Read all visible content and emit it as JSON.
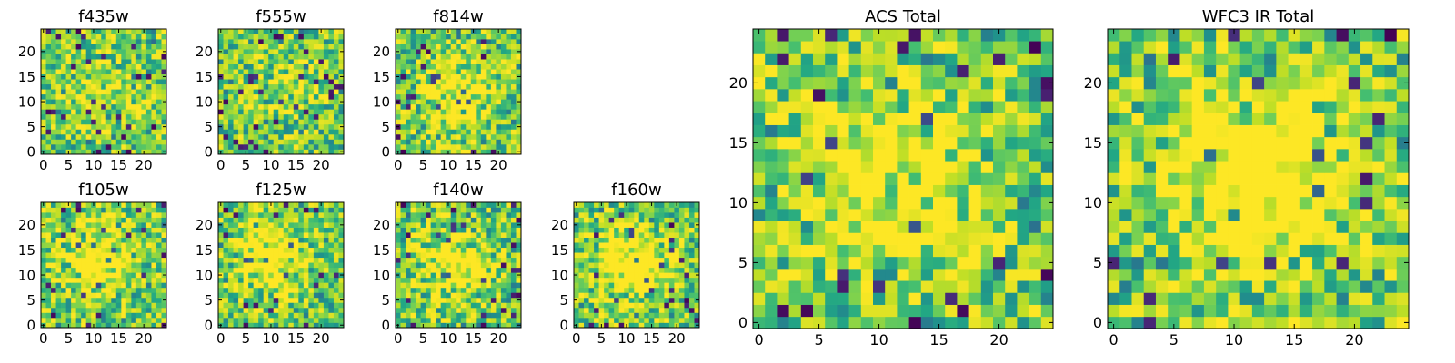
{
  "chart_data": [
    {
      "type": "heatmap",
      "title": "f435w",
      "colormap": "viridis",
      "grid": false,
      "xlim": [
        0,
        25
      ],
      "ylim": [
        0,
        25
      ],
      "x_ticks": [
        0,
        5,
        10,
        15,
        20
      ],
      "y_ticks": [
        0,
        5,
        10,
        15,
        20
      ],
      "xlabel": "",
      "ylabel": "",
      "peak_location": [
        12,
        12
      ],
      "peak_strength": 0.1,
      "noise_seed": 11
    },
    {
      "type": "heatmap",
      "title": "f555w",
      "colormap": "viridis",
      "grid": false,
      "xlim": [
        0,
        25
      ],
      "ylim": [
        0,
        25
      ],
      "x_ticks": [
        0,
        5,
        10,
        15,
        20
      ],
      "y_ticks": [
        0,
        5,
        10,
        15,
        20
      ],
      "xlabel": "",
      "ylabel": "",
      "peak_location": [
        12,
        12
      ],
      "peak_strength": 0.1,
      "noise_seed": 23
    },
    {
      "type": "heatmap",
      "title": "f814w",
      "colormap": "viridis",
      "grid": false,
      "xlim": [
        0,
        25
      ],
      "ylim": [
        0,
        25
      ],
      "x_ticks": [
        0,
        5,
        10,
        15,
        20
      ],
      "y_ticks": [
        0,
        5,
        10,
        15,
        20
      ],
      "xlabel": "",
      "ylabel": "",
      "peak_location": [
        11,
        12
      ],
      "peak_strength": 0.25,
      "noise_seed": 37
    },
    {
      "type": "heatmap",
      "title": "f105w",
      "colormap": "viridis",
      "grid": false,
      "xlim": [
        0,
        25
      ],
      "ylim": [
        0,
        25
      ],
      "x_ticks": [
        0,
        5,
        10,
        15,
        20
      ],
      "y_ticks": [
        0,
        5,
        10,
        15,
        20
      ],
      "xlabel": "",
      "ylabel": "",
      "peak_location": [
        11,
        13
      ],
      "peak_strength": 0.35,
      "noise_seed": 41
    },
    {
      "type": "heatmap",
      "title": "f125w",
      "colormap": "viridis",
      "grid": false,
      "xlim": [
        0,
        25
      ],
      "ylim": [
        0,
        25
      ],
      "x_ticks": [
        0,
        5,
        10,
        15,
        20
      ],
      "y_ticks": [
        0,
        5,
        10,
        15,
        20
      ],
      "xlabel": "",
      "ylabel": "",
      "peak_location": [
        10,
        13
      ],
      "peak_strength": 0.35,
      "noise_seed": 53
    },
    {
      "type": "heatmap",
      "title": "f140w",
      "colormap": "viridis",
      "grid": false,
      "xlim": [
        0,
        25
      ],
      "ylim": [
        0,
        25
      ],
      "x_ticks": [
        0,
        5,
        10,
        15,
        20
      ],
      "y_ticks": [
        0,
        5,
        10,
        15,
        20
      ],
      "xlabel": "",
      "ylabel": "",
      "peak_location": [
        11,
        12
      ],
      "peak_strength": 0.35,
      "noise_seed": 67
    },
    {
      "type": "heatmap",
      "title": "f160w",
      "colormap": "viridis",
      "grid": false,
      "xlim": [
        0,
        25
      ],
      "ylim": [
        0,
        25
      ],
      "x_ticks": [
        0,
        5,
        10,
        15,
        20
      ],
      "y_ticks": [
        0,
        5,
        10,
        15,
        20
      ],
      "xlabel": "",
      "ylabel": "",
      "peak_location": [
        11,
        12
      ],
      "peak_strength": 0.4,
      "noise_seed": 79
    },
    {
      "type": "heatmap",
      "title": "ACS Total",
      "colormap": "viridis",
      "grid": false,
      "xlim": [
        0,
        25
      ],
      "ylim": [
        0,
        25
      ],
      "x_ticks": [
        0,
        5,
        10,
        15,
        20
      ],
      "y_ticks": [
        0,
        5,
        10,
        15,
        20
      ],
      "xlabel": "",
      "ylabel": "",
      "peak_location": [
        11,
        12
      ],
      "peak_strength": 0.3,
      "noise_seed": 97
    },
    {
      "type": "heatmap",
      "title": "WFC3 IR Total",
      "colormap": "viridis",
      "grid": false,
      "xlim": [
        0,
        25
      ],
      "ylim": [
        0,
        25
      ],
      "x_ticks": [
        0,
        5,
        10,
        15,
        20
      ],
      "y_ticks": [
        0,
        5,
        10,
        15,
        20
      ],
      "xlabel": "",
      "ylabel": "",
      "peak_location": [
        12,
        12
      ],
      "peak_strength": 0.5,
      "noise_seed": 103
    }
  ]
}
